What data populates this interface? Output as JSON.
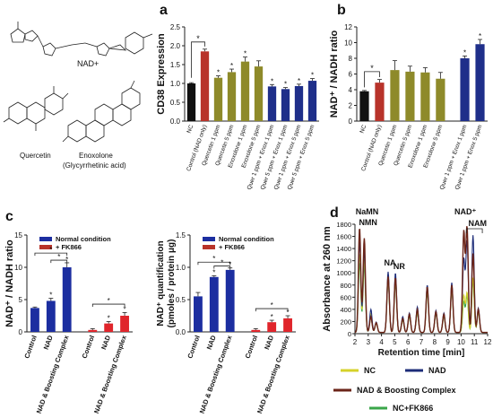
{
  "molecules": {
    "nad_label": "NAD+",
    "quercetin_label": "Quercetin",
    "enoxolone_label": "Enoxolone",
    "enoxolone_sub": "(Glycyrrhetinic acid)"
  },
  "colors": {
    "black": "#111111",
    "control_red": "#b8332a",
    "olive": "#8e8a2a",
    "navy": "#1f2f8a",
    "normal_blue": "#1c2ea0",
    "fk_red": "#e0252b",
    "nc_yellow": "#d6d22a",
    "nad_line": "#1d2c78",
    "boost_line": "#6b2418",
    "fk_green": "#3aa64a"
  },
  "chart_data": [
    {
      "panel": "a",
      "type": "bar",
      "ylabel": "CD38 Expression",
      "ylim": [
        0,
        2.5
      ],
      "yticks": [
        "0.0",
        "0.5",
        "1.0",
        "1.5",
        "2.0",
        "2.5"
      ],
      "categories": [
        "NC",
        "Control (NAD only)",
        "Quercetin 1 ppm",
        "Quercetin 5 ppm",
        "Enoxolone 1 ppm",
        "Enoxolone 5 ppm",
        "Quer 1 ppm + Enox 1 ppm",
        "Quer 5 ppm + Enox 1 ppm",
        "Quer 1 ppm + Enox 5 ppm",
        "Quer 5 ppm + Enox 5 ppm"
      ],
      "values": [
        1.0,
        1.85,
        1.15,
        1.3,
        1.58,
        1.45,
        0.92,
        0.85,
        0.93,
        1.07
      ],
      "errors": [
        0.02,
        0.06,
        0.05,
        0.08,
        0.12,
        0.15,
        0.05,
        0.04,
        0.05,
        0.06
      ],
      "colors": [
        "black",
        "control_red",
        "olive",
        "olive",
        "olive",
        "olive",
        "navy",
        "navy",
        "navy",
        "navy"
      ],
      "annotations": [
        "*",
        "*",
        "*",
        "*",
        "*",
        "*",
        "*",
        "*",
        "*"
      ]
    },
    {
      "panel": "b",
      "type": "bar",
      "ylabel": "NAD⁺ / NADH ratio",
      "ylim": [
        0,
        12
      ],
      "yticks": [
        "0",
        "2",
        "4",
        "6",
        "8",
        "10",
        "12"
      ],
      "categories": [
        "NC",
        "Control (NAD only)",
        "Quercetin 1 ppm",
        "Quercetin 5 ppm",
        "Enoxolone 1 ppm",
        "Enoxolone 5 ppm",
        "Quer 1 ppm + Enox 1 ppm",
        "Quer 1 ppm + Enox 5 ppm"
      ],
      "values": [
        3.8,
        4.9,
        6.5,
        6.3,
        6.2,
        5.4,
        8.0,
        9.8
      ],
      "errors": [
        0.1,
        0.4,
        1.2,
        0.7,
        0.6,
        0.8,
        0.3,
        0.6
      ],
      "colors": [
        "black",
        "control_red",
        "olive",
        "olive",
        "olive",
        "olive",
        "navy",
        "navy"
      ],
      "annotations": [
        "*",
        "*",
        "*"
      ]
    },
    {
      "panel": "c-left",
      "type": "bar",
      "ylabel": "NAD⁺ / NADH ratio",
      "ylim": [
        0,
        15
      ],
      "yticks": [
        "0",
        "5",
        "10",
        "15"
      ],
      "legend": [
        "Normal condition",
        "+ FK866"
      ],
      "categories": [
        "Control",
        "NAD",
        "NAD & Boosting Complex",
        "Control",
        "NAD",
        "NAD & Boosting Complex"
      ],
      "values": [
        3.7,
        4.8,
        10.0,
        0.3,
        1.3,
        2.5
      ],
      "errors": [
        0.15,
        0.4,
        0.7,
        0.2,
        0.3,
        0.5
      ],
      "series_index": [
        0,
        0,
        0,
        1,
        1,
        1
      ],
      "annotations": [
        "*",
        "*",
        "*",
        "*",
        "*",
        "*"
      ]
    },
    {
      "panel": "c-right",
      "type": "bar",
      "ylabel": "NAD⁺ quantification (pmoles / protein μg)",
      "ylim": [
        0,
        1.5
      ],
      "yticks": [
        "0.0",
        "0.5",
        "1.0",
        "1.5"
      ],
      "legend": [
        "Normal condition",
        "+ FK866"
      ],
      "categories": [
        "Control",
        "NAD",
        "NAD & Boosting Complex",
        "Control",
        "NAD",
        "NAD & Boosting Complex"
      ],
      "values": [
        0.55,
        0.85,
        0.96,
        0.03,
        0.15,
        0.21
      ],
      "errors": [
        0.06,
        0.02,
        0.03,
        0.02,
        0.03,
        0.04
      ],
      "series_index": [
        0,
        0,
        0,
        1,
        1,
        1
      ],
      "annotations": [
        "*",
        "*",
        "*",
        "*"
      ]
    },
    {
      "panel": "d",
      "type": "line",
      "ylabel": "Absorbance at 260 nm",
      "xlabel": "Retention time [min]",
      "xlim": [
        2,
        12
      ],
      "ylim": [
        0,
        1800
      ],
      "xticks": [
        "2",
        "3",
        "4",
        "5",
        "6",
        "7",
        "8",
        "9",
        "10",
        "11",
        "12"
      ],
      "yticks": [
        "0",
        "200",
        "400",
        "600",
        "800",
        "1000",
        "1200",
        "1400",
        "1600",
        "1800"
      ],
      "peak_labels": [
        "NaMN",
        "NMN",
        "NA",
        "NR",
        "NAD⁺",
        "NAM"
      ],
      "peaks": [
        {
          "x": 2.35,
          "NC": 1300,
          "NAD": 1500,
          "Boost": 1720,
          "FK": 1150
        },
        {
          "x": 2.7,
          "NC": 1200,
          "NAD": 1350,
          "Boost": 1550,
          "FK": 1100
        },
        {
          "x": 3.2,
          "NC": 300,
          "NAD": 380,
          "Boost": 260,
          "FK": 250
        },
        {
          "x": 3.6,
          "NC": 150,
          "NAD": 170,
          "Boost": 160,
          "FK": 150
        },
        {
          "x": 4.5,
          "NC": 900,
          "NAD": 1000,
          "Boost": 920,
          "FK": 850
        },
        {
          "x": 5.05,
          "NC": 850,
          "NAD": 980,
          "Boost": 900,
          "FK": 800
        },
        {
          "x": 5.6,
          "NC": 220,
          "NAD": 260,
          "Boost": 230,
          "FK": 200
        },
        {
          "x": 6.1,
          "NC": 280,
          "NAD": 320,
          "Boost": 300,
          "FK": 260
        },
        {
          "x": 6.7,
          "NC": 350,
          "NAD": 420,
          "Boost": 380,
          "FK": 320
        },
        {
          "x": 7.45,
          "NC": 700,
          "NAD": 780,
          "Boost": 750,
          "FK": 650
        },
        {
          "x": 8.1,
          "NC": 330,
          "NAD": 360,
          "Boost": 340,
          "FK": 300
        },
        {
          "x": 8.7,
          "NC": 280,
          "NAD": 320,
          "Boost": 300,
          "FK": 260
        },
        {
          "x": 9.3,
          "NC": 750,
          "NAD": 820,
          "Boost": 780,
          "FK": 700
        },
        {
          "x": 10.2,
          "NC": 600,
          "NAD": 1200,
          "Boost": 1650,
          "FK": 500
        },
        {
          "x": 10.45,
          "NC": 650,
          "NAD": 1500,
          "Boost": 1720,
          "FK": 600
        },
        {
          "x": 10.9,
          "NC": 900,
          "NAD": 1600,
          "Boost": 1300,
          "FK": 850
        },
        {
          "x": 11.3,
          "NC": 350,
          "NAD": 400,
          "Boost": 380,
          "FK": 330
        }
      ],
      "series": [
        {
          "name": "NC",
          "key": "NC",
          "color": "nc_yellow"
        },
        {
          "name": "NAD",
          "key": "NAD",
          "color": "nad_line"
        },
        {
          "name": "NAD & Boosting Complex",
          "key": "Boost",
          "color": "boost_line"
        },
        {
          "name": "NC+FK866",
          "key": "FK",
          "color": "fk_green"
        }
      ]
    }
  ],
  "panel_labels": {
    "a": "a",
    "b": "b",
    "c": "c",
    "d": "d"
  }
}
